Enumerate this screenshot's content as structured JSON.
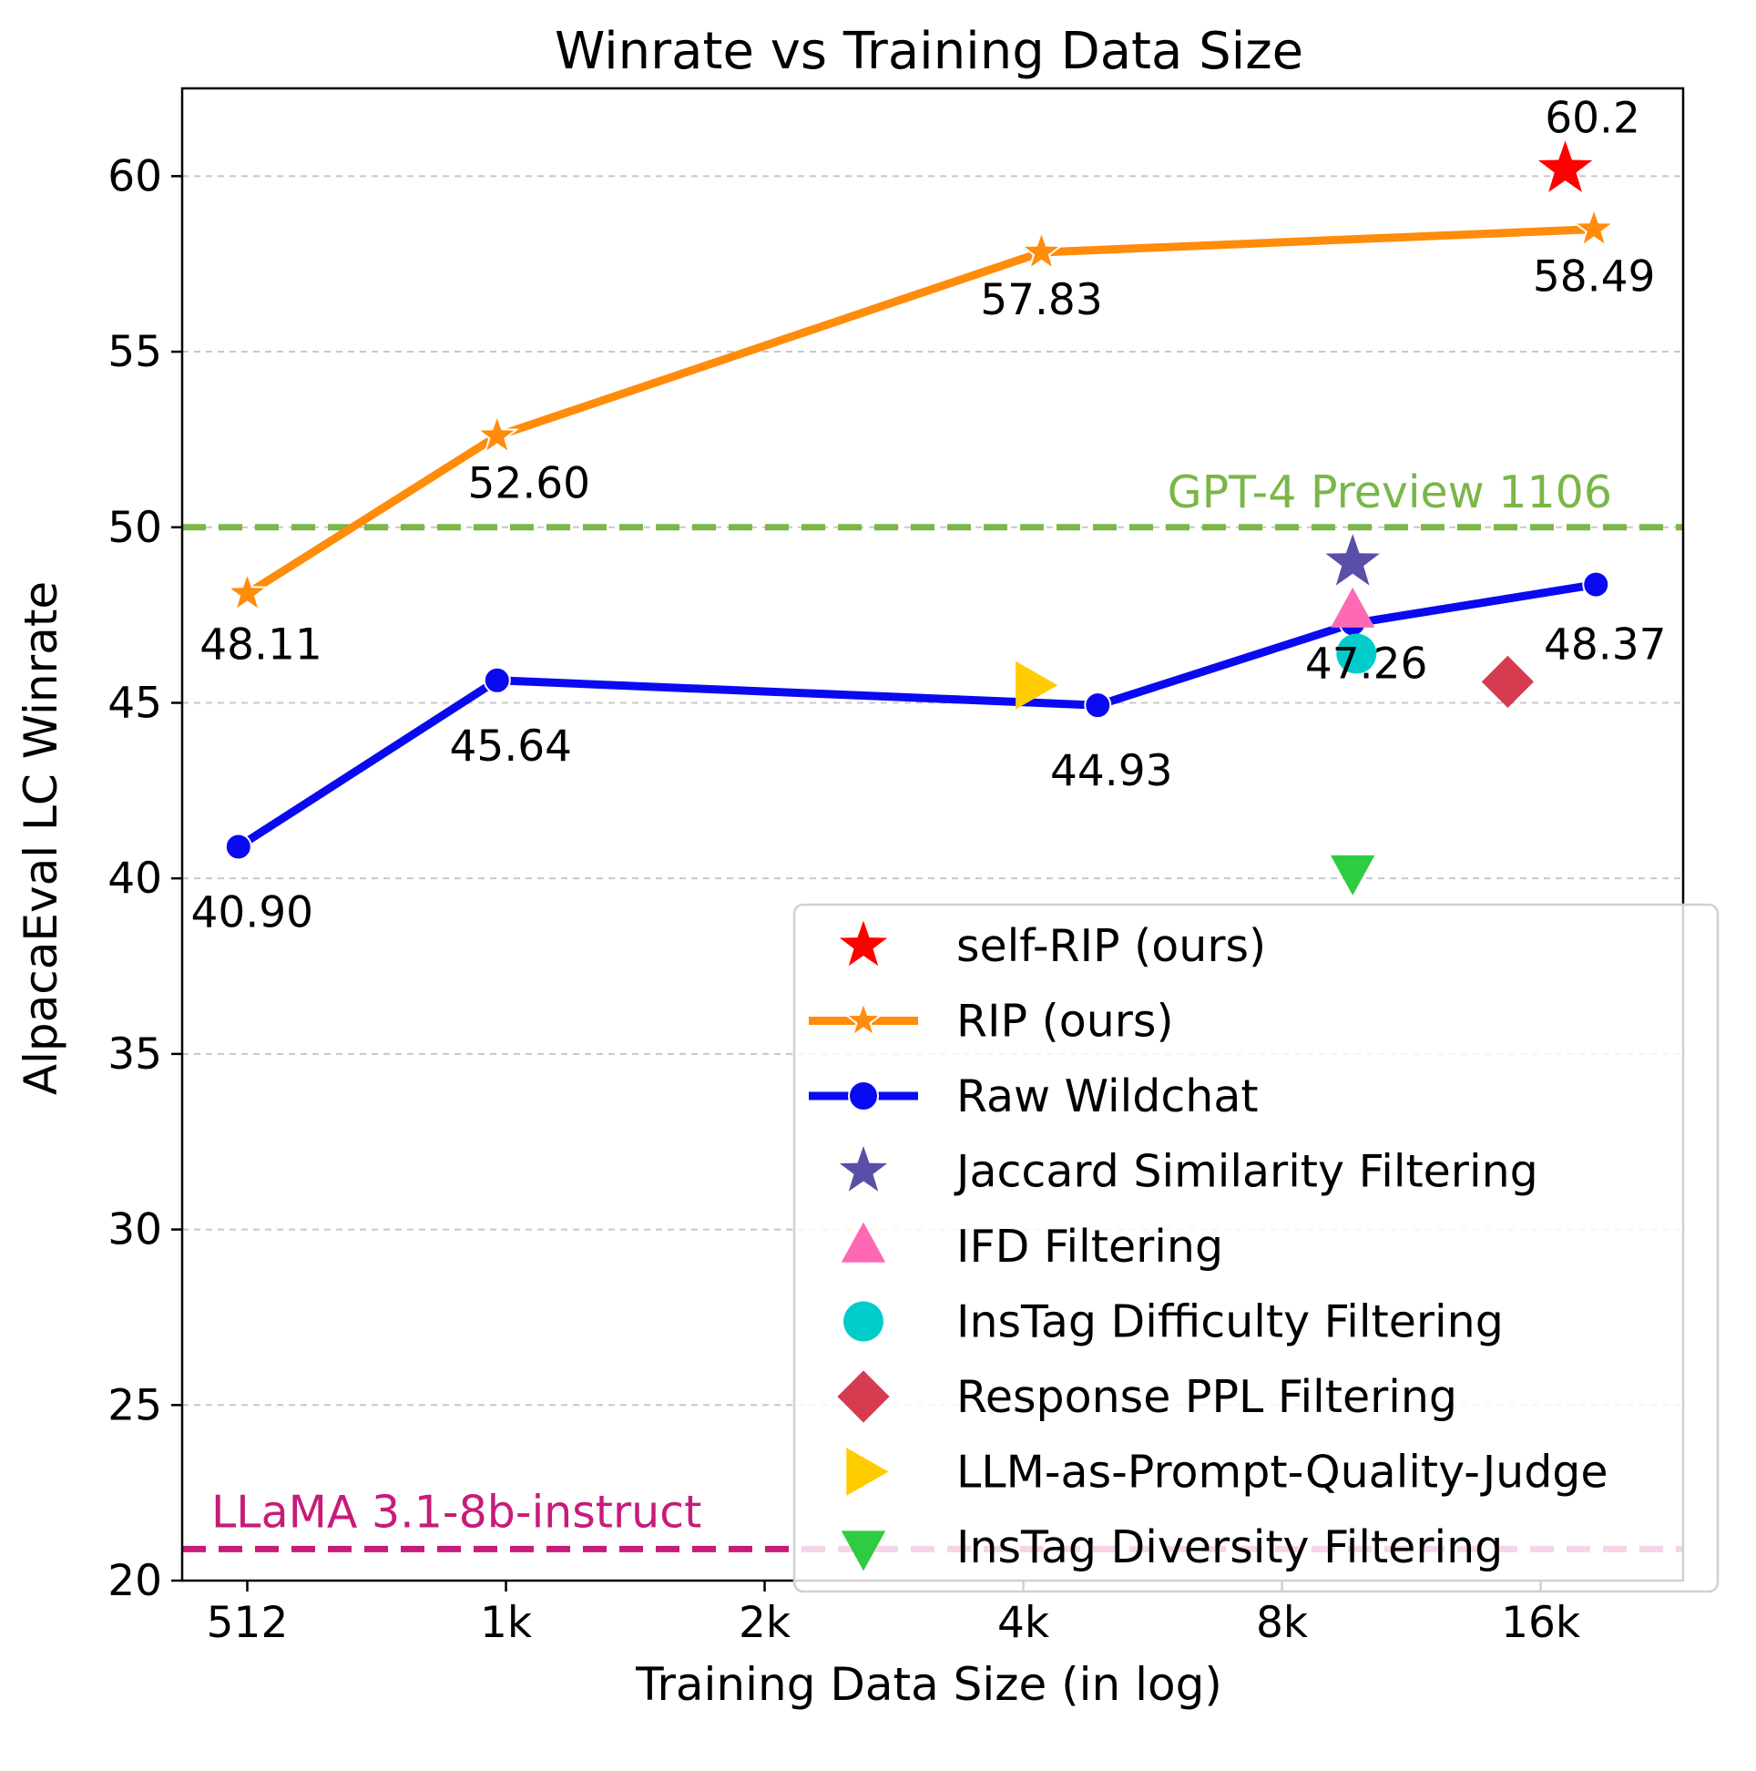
{
  "chart_data": {
    "type": "line",
    "title": "Winrate vs Training Data Size",
    "xlabel": "Training Data Size (in log)",
    "ylabel": "AlpacaEval LC Winrate",
    "x_scale": "log2",
    "x_ticks": [
      {
        "value": 512,
        "label": "512"
      },
      {
        "value": 1024,
        "label": "1k"
      },
      {
        "value": 2048,
        "label": "2k"
      },
      {
        "value": 4096,
        "label": "4k"
      },
      {
        "value": 8192,
        "label": "8k"
      },
      {
        "value": 16384,
        "label": "16k"
      }
    ],
    "xlim": [
      430,
      24000
    ],
    "ylim": [
      20,
      62.5
    ],
    "y_ticks": [
      20,
      25,
      30,
      35,
      40,
      45,
      50,
      55,
      60
    ],
    "grid": {
      "y": true,
      "x": false
    },
    "legend_placement": "lower-right",
    "series": [
      {
        "name": "RIP (ours)",
        "kind": "line",
        "marker": "star",
        "color": "#ff8c0a",
        "points": [
          {
            "x": 512,
            "y": 48.11,
            "label": "48.11"
          },
          {
            "x": 1000,
            "y": 52.6,
            "label": "52.60"
          },
          {
            "x": 4300,
            "y": 57.83,
            "label": "57.83"
          },
          {
            "x": 18900,
            "y": 58.49,
            "label": "58.49"
          }
        ]
      },
      {
        "name": "Raw Wildchat",
        "kind": "line",
        "marker": "circle",
        "color": "#0a0af0",
        "points": [
          {
            "x": 500,
            "y": 40.9,
            "label": "40.90"
          },
          {
            "x": 1000,
            "y": 45.64,
            "label": "45.64"
          },
          {
            "x": 5000,
            "y": 44.93,
            "label": "44.93"
          },
          {
            "x": 9900,
            "y": 47.26,
            "label": "47.26"
          },
          {
            "x": 19000,
            "y": 48.37,
            "label": "48.37"
          }
        ]
      },
      {
        "name": "self-RIP (ours)",
        "kind": "point",
        "marker": "star",
        "color": "#ff0000",
        "points": [
          {
            "x": 17500,
            "y": 60.2,
            "label": "60.2"
          }
        ]
      },
      {
        "name": "Jaccard Similarity Filtering",
        "kind": "point",
        "marker": "star",
        "color": "#5a4fa8",
        "points": [
          {
            "x": 9900,
            "y": 49.0
          }
        ]
      },
      {
        "name": "IFD Filtering",
        "kind": "point",
        "marker": "triangle-up",
        "color": "#ff69b4",
        "points": [
          {
            "x": 9900,
            "y": 47.6
          }
        ]
      },
      {
        "name": "InsTag Difficulty Filtering",
        "kind": "point",
        "marker": "circle",
        "color": "#00cccc",
        "points": [
          {
            "x": 10000,
            "y": 46.4
          }
        ]
      },
      {
        "name": "Response PPL Filtering",
        "kind": "point",
        "marker": "diamond",
        "color": "#d63c50",
        "points": [
          {
            "x": 15000,
            "y": 45.6
          }
        ]
      },
      {
        "name": "LLM-as-Prompt-Quality-Judge",
        "kind": "point",
        "marker": "triangle-right",
        "color": "#ffcc00",
        "points": [
          {
            "x": 4200,
            "y": 45.5
          }
        ]
      },
      {
        "name": "InsTag Diversity Filtering",
        "kind": "point",
        "marker": "triangle-down",
        "color": "#2ecc40",
        "points": [
          {
            "x": 9900,
            "y": 40.2
          }
        ]
      }
    ],
    "reference_lines": [
      {
        "label": "GPT-4 Preview 1106",
        "y": 50.0,
        "color": "#7ab648"
      },
      {
        "label": "LLaMA 3.1-8b-instruct",
        "y": 20.9,
        "color": "#c71b7a"
      }
    ],
    "legend": [
      {
        "label": "self-RIP (ours)",
        "marker": "star",
        "color": "#ff0000",
        "line": false
      },
      {
        "label": "RIP (ours)",
        "marker": "star",
        "color": "#ff8c0a",
        "line": true
      },
      {
        "label": "Raw Wildchat",
        "marker": "circle",
        "color": "#0a0af0",
        "line": true
      },
      {
        "label": "Jaccard Similarity Filtering",
        "marker": "star",
        "color": "#5a4fa8",
        "line": false
      },
      {
        "label": "IFD Filtering",
        "marker": "triangle-up",
        "color": "#ff69b4",
        "line": false
      },
      {
        "label": "InsTag Difficulty Filtering",
        "marker": "circle",
        "color": "#00cccc",
        "line": false
      },
      {
        "label": "Response PPL Filtering",
        "marker": "diamond",
        "color": "#d63c50",
        "line": false
      },
      {
        "label": "LLM-as-Prompt-Quality-Judge",
        "marker": "triangle-right",
        "color": "#ffcc00",
        "line": false
      },
      {
        "label": "InsTag Diversity Filtering",
        "marker": "triangle-down",
        "color": "#2ecc40",
        "line": false
      }
    ]
  }
}
